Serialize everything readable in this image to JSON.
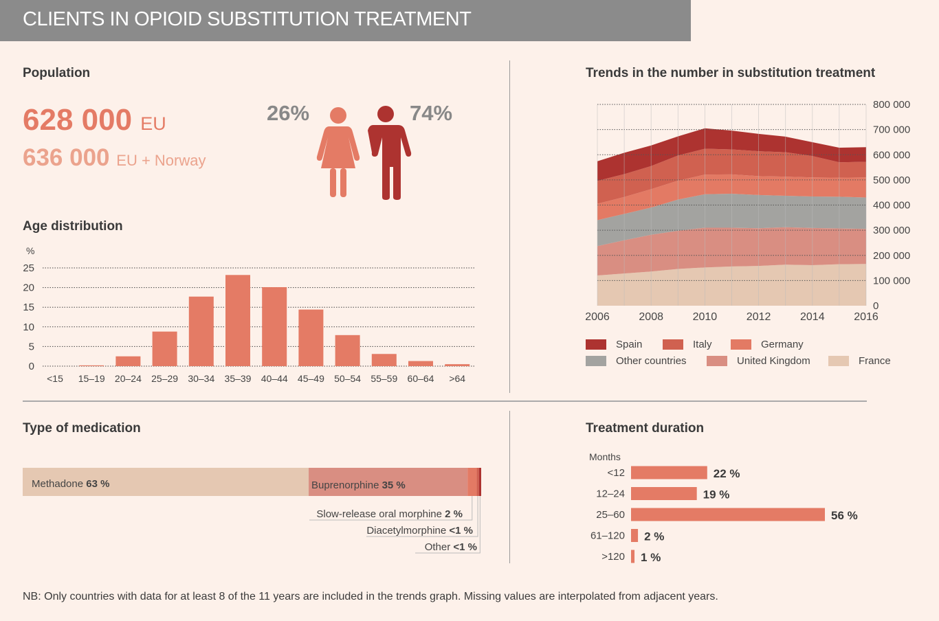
{
  "header": {
    "title": "CLIENTS IN OPIOID SUBSTITUTION TREATMENT"
  },
  "population": {
    "title": "Population",
    "eu_value": "628 000",
    "eu_label": "EU",
    "eu_norway_value": "636 000",
    "eu_norway_label": "EU + Norway",
    "female_pct": "26%",
    "male_pct": "74%",
    "female_icon": "female-figure-icon",
    "male_icon": "male-figure-icon",
    "female_color": "#e47b65",
    "male_color": "#ad3330"
  },
  "chart_data": [
    {
      "type": "bar",
      "title": "Age distribution",
      "ylabel": "%",
      "categories": [
        "<15",
        "15–19",
        "20–24",
        "25–29",
        "30–34",
        "35–39",
        "40–44",
        "45–49",
        "50–54",
        "55–59",
        "60–64",
        ">64"
      ],
      "values": [
        0,
        0.2,
        2.5,
        8.8,
        17.7,
        23.2,
        20.1,
        14.4,
        7.9,
        3.1,
        1.3,
        0.5
      ],
      "ylim": [
        0,
        25
      ],
      "yticks": [
        "0",
        "5",
        "10",
        "15",
        "20",
        "25"
      ],
      "grid": true,
      "color": "#e47b65"
    },
    {
      "type": "area",
      "stacked": true,
      "title": "Trends in the number in substitution treatment",
      "x": [
        2006,
        2007,
        2008,
        2009,
        2010,
        2011,
        2012,
        2013,
        2014,
        2015,
        2016
      ],
      "xticks": [
        "2006",
        "2008",
        "2010",
        "2012",
        "2014",
        "2016"
      ],
      "yticks": [
        "0",
        "100 000",
        "200 000",
        "300 000",
        "400 000",
        "500 000",
        "600 000",
        "700 000",
        "800 000"
      ],
      "ylim": [
        0,
        800000
      ],
      "grid": true,
      "legend_position": "bottom",
      "series": [
        {
          "name": "France",
          "color": "#e5c8b2",
          "values": [
            120000,
            128000,
            136000,
            146000,
            152000,
            156000,
            158000,
            163000,
            161000,
            165000,
            166000
          ]
        },
        {
          "name": "United Kingdom",
          "color": "#d98e82",
          "values": [
            117000,
            132000,
            146000,
            152000,
            158000,
            154000,
            150000,
            149000,
            148000,
            142000,
            139000
          ]
        },
        {
          "name": "Other countries",
          "color": "#a3a3a0",
          "values": [
            103000,
            105000,
            108000,
            124000,
            133000,
            135000,
            132000,
            125000,
            125000,
            126000,
            125000
          ]
        },
        {
          "name": "Germany",
          "color": "#e37a64",
          "values": [
            65000,
            67000,
            73000,
            75000,
            78000,
            77000,
            75000,
            76000,
            76000,
            76000,
            80000
          ]
        },
        {
          "name": "Italy",
          "color": "#d06150",
          "values": [
            91000,
            91000,
            92000,
            100000,
            103000,
            99000,
            99000,
            97000,
            85000,
            61000,
            62000
          ]
        },
        {
          "name": "Spain",
          "color": "#ad3330",
          "values": [
            78000,
            85000,
            82000,
            76000,
            81000,
            75000,
            69000,
            62000,
            55000,
            58000,
            58000
          ]
        }
      ],
      "legend_order": [
        "Spain",
        "Italy",
        "Germany",
        "Other countries",
        "United Kingdom",
        "France"
      ]
    },
    {
      "type": "bar",
      "orientation": "horizontal-stacked",
      "title": "Type of medication",
      "categories": [
        "Methadone",
        "Buprenorphine",
        "Slow-release oral morphine",
        "Diacetylmorphine",
        "Other"
      ],
      "values": [
        63,
        35,
        2,
        0.5,
        0.5
      ],
      "labels": [
        "63 %",
        "35 %",
        "2 %",
        "<1 %",
        "<1 %"
      ],
      "colors": [
        "#e5c8b2",
        "#d98e82",
        "#e37a64",
        "#d06150",
        "#ad3330"
      ]
    },
    {
      "type": "bar",
      "orientation": "horizontal",
      "title": "Treatment duration",
      "ylabel": "Months",
      "categories": [
        "<12",
        "12–24",
        "25–60",
        "61–120",
        ">120"
      ],
      "values": [
        22,
        19,
        56,
        2,
        1
      ],
      "labels": [
        "22 %",
        "19 %",
        "56 %",
        "2 %",
        "1 %"
      ],
      "color": "#e47b65"
    }
  ],
  "note": "NB: Only countries with data for at least 8 of the 11 years are included in the trends graph. Missing values are interpolated from adjacent years."
}
